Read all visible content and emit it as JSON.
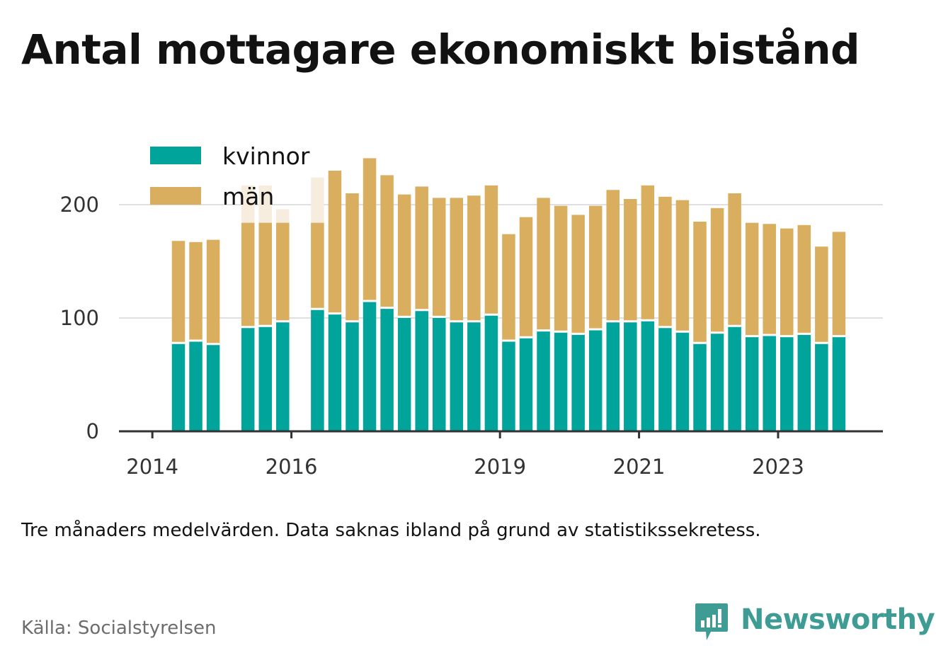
{
  "title": "Antal mottagare ekonomiskt bistånd",
  "note": "Tre månaders medelvärden. Data saknas ibland på grund av statistikssekretess.",
  "source": "Källa: Socialstyrelsen",
  "brand": {
    "name": "Newsworthy",
    "icon": "bar-chart-speech-bubble-icon"
  },
  "colors": {
    "kvinnor": "#00a49a",
    "man": "#d9ae5e",
    "man_faded": "#f6eddf",
    "grid": "#e0e0e0",
    "axis": "#333333"
  },
  "chart_data": {
    "type": "bar",
    "stacked": true,
    "legend": [
      "kvinnor",
      "män"
    ],
    "legend_position": "top-left",
    "grid": true,
    "ylim": [
      0,
      250
    ],
    "yticks": [
      0,
      100,
      200
    ],
    "xticks": [
      "2014",
      "2016",
      "2019",
      "2021",
      "2023"
    ],
    "x": [
      "2014-Q2",
      "2014-Q3",
      "2014-Q4",
      "2015-Q1",
      "2015-Q2",
      "2015-Q3",
      "2015-Q4",
      "2016-Q1",
      "2016-Q2",
      "2016-Q3",
      "2016-Q4",
      "2017-Q1",
      "2017-Q2",
      "2017-Q3",
      "2017-Q4",
      "2018-Q1",
      "2018-Q2",
      "2018-Q3",
      "2018-Q4",
      "2019-Q1",
      "2019-Q2",
      "2019-Q3",
      "2019-Q4",
      "2020-Q1",
      "2020-Q2",
      "2020-Q3",
      "2020-Q4",
      "2021-Q1",
      "2021-Q2",
      "2021-Q3",
      "2021-Q4",
      "2022-Q1",
      "2022-Q2",
      "2022-Q3",
      "2022-Q4",
      "2023-Q1",
      "2023-Q2",
      "2023-Q3",
      "2023-Q4",
      "2024-Q1"
    ],
    "series": [
      {
        "name": "kvinnor",
        "values": [
          78,
          80,
          77,
          null,
          92,
          93,
          97,
          null,
          108,
          104,
          97,
          115,
          109,
          101,
          107,
          101,
          97,
          97,
          103,
          80,
          83,
          89,
          88,
          86,
          90,
          97,
          97,
          98,
          92,
          88,
          78,
          87,
          93,
          84,
          85,
          84,
          86,
          78,
          84,
          null
        ]
      },
      {
        "name": "män",
        "values": [
          90,
          87,
          92,
          null,
          92,
          91,
          87,
          null,
          76,
          126,
          113,
          126,
          117,
          108,
          109,
          105,
          109,
          111,
          114,
          94,
          106,
          117,
          111,
          105,
          109,
          116,
          108,
          119,
          115,
          116,
          107,
          110,
          117,
          100,
          98,
          95,
          96,
          85,
          92,
          null
        ]
      }
    ],
    "faded_totals": [
      null,
      null,
      null,
      null,
      217,
      217,
      196,
      null,
      224,
      null,
      null,
      null,
      null,
      null,
      null,
      null,
      null,
      null,
      null,
      null,
      null,
      null,
      null,
      null,
      null,
      null,
      null,
      null,
      null,
      null,
      null,
      null,
      null,
      null,
      null,
      null,
      null,
      null,
      null,
      null
    ]
  }
}
